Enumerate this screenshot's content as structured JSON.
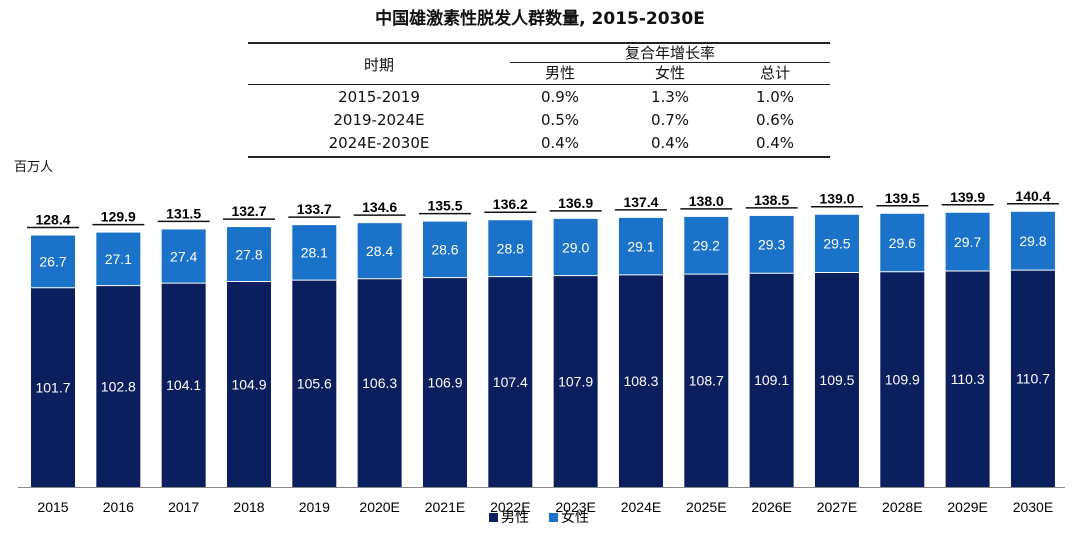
{
  "title": "中国雄激素性脱发人群数量, 2015-2030E",
  "unit_label": "百万人",
  "growth_table": {
    "period_header": "时期",
    "group_header": "复合年增长率",
    "columns": [
      "男性",
      "女性",
      "总计"
    ],
    "rows": [
      {
        "period": "2015-2019",
        "values": [
          "0.9%",
          "1.3%",
          "1.0%"
        ]
      },
      {
        "period": "2019-2024E",
        "values": [
          "0.5%",
          "0.7%",
          "0.6%"
        ]
      },
      {
        "period": "2024E-2030E",
        "values": [
          "0.4%",
          "0.4%",
          "0.4%"
        ]
      }
    ]
  },
  "colors": {
    "male": "#0b1f5e",
    "female": "#1a73c8"
  },
  "chart_data": {
    "type": "bar",
    "stacked": true,
    "categories": [
      "2015",
      "2016",
      "2017",
      "2018",
      "2019",
      "2020E",
      "2021E",
      "2022E",
      "2023E",
      "2024E",
      "2025E",
      "2026E",
      "2027E",
      "2028E",
      "2029E",
      "2030E"
    ],
    "series": [
      {
        "name": "男性",
        "values": [
          101.7,
          102.8,
          104.1,
          104.9,
          105.6,
          106.3,
          106.9,
          107.4,
          107.9,
          108.3,
          108.7,
          109.1,
          109.5,
          109.9,
          110.3,
          110.7
        ]
      },
      {
        "name": "女性",
        "values": [
          26.7,
          27.1,
          27.4,
          27.8,
          28.1,
          28.4,
          28.6,
          28.8,
          29.0,
          29.1,
          29.2,
          29.3,
          29.5,
          29.6,
          29.7,
          29.8
        ]
      }
    ],
    "value_labels": {
      "男性": [
        "101.7",
        "102.8",
        "104.1",
        "104.9",
        "105.6",
        "106.3",
        "106.9",
        "107.4",
        "107.9",
        "108.3",
        "108.7",
        "109.1",
        "109.5",
        "109.9",
        "110.3",
        "110.7"
      ],
      "女性": [
        "26.7",
        "27.1",
        "27.4",
        "27.8",
        "28.1",
        "28.4",
        "28.6",
        "28.8",
        "29.0",
        "29.1",
        "29.2",
        "29.3",
        "29.5",
        "29.6",
        "29.7",
        "29.8"
      ]
    },
    "totals": [
      "128.4",
      "129.9",
      "131.5",
      "132.7",
      "133.7",
      "134.6",
      "135.5",
      "136.2",
      "136.9",
      "137.4",
      "138.0",
      "138.5",
      "139.0",
      "139.5",
      "139.9",
      "140.4"
    ],
    "ylim": [
      0,
      140.4
    ],
    "legend": [
      "男性",
      "女性"
    ],
    "legend_position": "bottom"
  }
}
